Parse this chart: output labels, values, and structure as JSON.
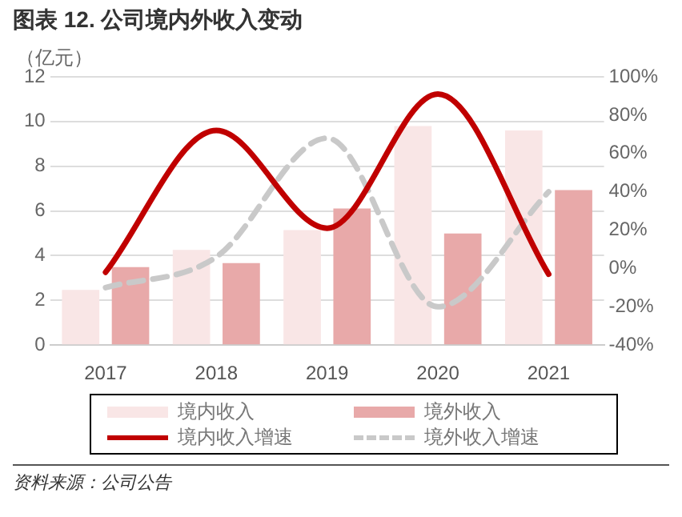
{
  "chart_data": {
    "type": "bar",
    "title": "图表 12. 公司境内外收入变动",
    "ylabel": "（亿元）",
    "categories": [
      "2017",
      "2018",
      "2019",
      "2020",
      "2021"
    ],
    "series": [
      {
        "name": "境内收入",
        "color": "#f9e6e6",
        "values": [
          2.47,
          4.26,
          5.14,
          9.8,
          9.6
        ]
      },
      {
        "name": "境外收入",
        "color": "#e8a9a9",
        "values": [
          3.49,
          3.67,
          6.11,
          4.99,
          6.93
        ]
      },
      {
        "name": "境内收入增速",
        "type": "line",
        "axis": "y2",
        "color": "#c00000",
        "line_style": "solid",
        "values": [
          -2,
          72,
          21,
          91,
          -3
        ]
      },
      {
        "name": "境外收入增速",
        "type": "line",
        "axis": "y2",
        "color": "#c9c9c9",
        "line_style": "dashed",
        "values": [
          -10,
          6,
          68,
          -20,
          40
        ]
      }
    ],
    "ylim": [
      0,
      12
    ],
    "yticks": [
      0,
      2,
      4,
      6,
      8,
      10,
      12
    ],
    "y2lim": [
      -40,
      100
    ],
    "y2ticks": [
      {
        "value": -40,
        "label": "-40%"
      },
      {
        "value": -20,
        "label": "-20%"
      },
      {
        "value": 0,
        "label": "0%"
      },
      {
        "value": 20,
        "label": "20%"
      },
      {
        "value": 40,
        "label": "40%"
      },
      {
        "value": 60,
        "label": "60%"
      },
      {
        "value": 80,
        "label": "80%"
      },
      {
        "value": 100,
        "label": "100%"
      }
    ],
    "grid": "y",
    "legend": "bottom",
    "marker": "none",
    "annotations": [
      "资料来源：公司公告"
    ]
  }
}
